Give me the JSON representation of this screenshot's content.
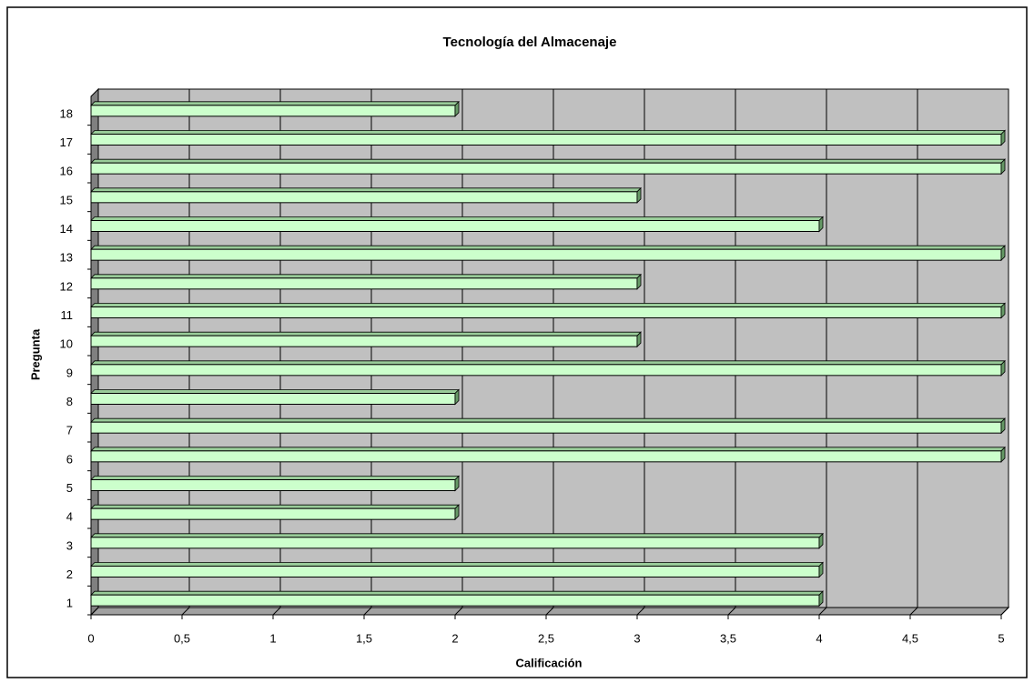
{
  "chart_data": {
    "type": "bar",
    "orientation": "horizontal",
    "title": "Tecnología del Almacenaje",
    "x_label": "Calificación",
    "y_label": "Pregunta",
    "categories": [
      "1",
      "2",
      "3",
      "4",
      "5",
      "6",
      "7",
      "8",
      "9",
      "10",
      "11",
      "12",
      "13",
      "14",
      "15",
      "16",
      "17",
      "18"
    ],
    "values": [
      4,
      4,
      4,
      2,
      2,
      5,
      5,
      2,
      5,
      3,
      5,
      3,
      5,
      4,
      3,
      5,
      5,
      2
    ],
    "color": "#ccffcc",
    "xlim": [
      0,
      5
    ],
    "xticks": [
      0,
      {
        "value": 0.5,
        "label": "0,5"
      },
      1,
      {
        "value": 1.5,
        "label": "1,5"
      },
      2,
      {
        "value": 2.5,
        "label": "2,5"
      },
      3,
      {
        "value": 3.5,
        "label": "3,5"
      },
      4,
      {
        "value": 4.5,
        "label": "4,5"
      },
      5
    ],
    "grid": true
  }
}
